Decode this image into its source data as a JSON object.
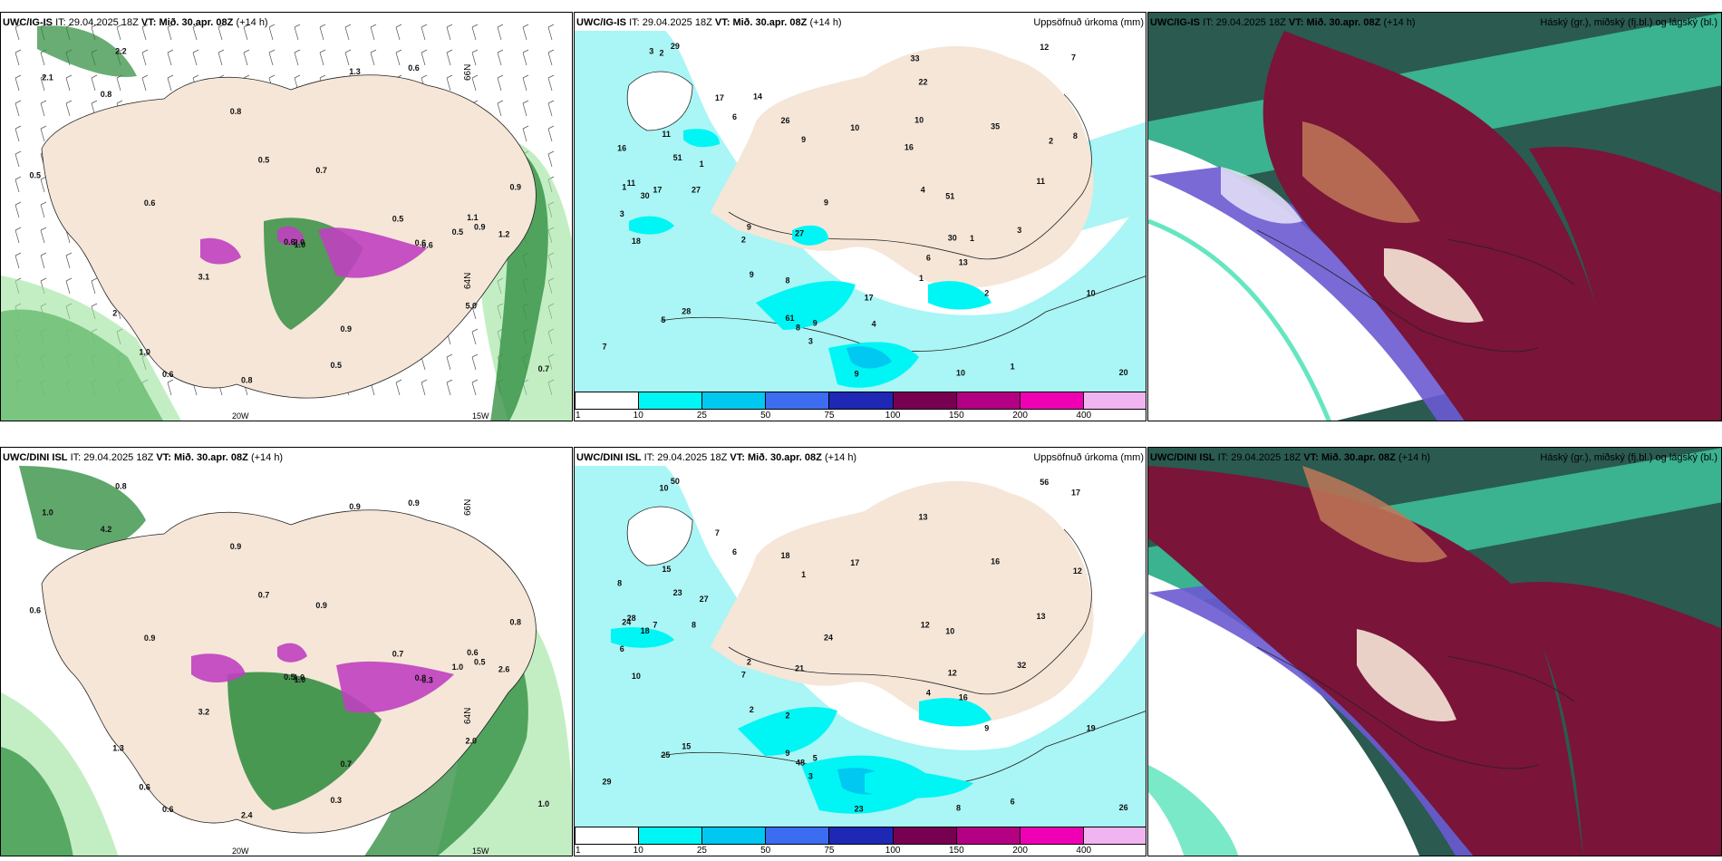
{
  "rows": [
    {
      "model": "UWC/IG-IS",
      "it_label": "IT:",
      "it_value": "29.04.2025 18Z",
      "vt_label": "VT:",
      "vt_value": "Mið. 30.apr. 08Z",
      "lead": "(+14 h)",
      "precip_title": "Uppsöfnuð úrkoma (mm)",
      "cloud_title": "Háský (gr.), miðský (fj.bl.) og lágský (bl.)",
      "lat_label": "66N",
      "lat_label_2": "64N",
      "lon_labels": [
        "20W",
        "15W"
      ],
      "snow_values": [
        "2.2",
        "0.6",
        "0.7",
        "0.5",
        "0.6",
        "0.5",
        "0.6",
        "0.6",
        "1.0",
        "2.0",
        "0.5",
        "0.5",
        "0.9",
        "0.8",
        "5.0",
        "3.1",
        "0.8",
        "0.6",
        "0.7",
        "0.5",
        "0.9",
        "1.1",
        "2.1",
        "1.3",
        "0.9",
        "1.0",
        "0.6",
        "0.8",
        "1.2",
        "2"
      ],
      "precip_values": [
        "6",
        "9",
        "9",
        "7",
        "22",
        "8",
        "10",
        "17",
        "12",
        "3",
        "2",
        "2",
        "6",
        "2",
        "1",
        "1",
        "10",
        "9",
        "51",
        "7",
        "5",
        "4",
        "1",
        "27",
        "28",
        "30",
        "20",
        "11",
        "3",
        "27",
        "35",
        "11",
        "9",
        "29",
        "8",
        "13",
        "10",
        "11",
        "30",
        "26",
        "61",
        "51",
        "18",
        "16",
        "17",
        "3",
        "9",
        "8",
        "9",
        "10",
        "14",
        "17",
        "33",
        "16",
        "2",
        "1",
        "3",
        "1",
        "4"
      ]
    },
    {
      "model": "UWC/DINI ISL",
      "it_label": "IT:",
      "it_value": "29.04.2025 18Z",
      "vt_label": "VT:",
      "vt_value": "Mið. 30.apr. 08Z",
      "lead": "(+14 h)",
      "precip_title": "Uppsöfnuð úrkoma (mm)",
      "cloud_title": "Háský (gr.), miðský (fj.bl.) og lágský (bl.)",
      "lat_label": "66N",
      "lat_label_2": "64N",
      "lon_labels": [
        "20W",
        "15W"
      ],
      "snow_values": [
        "0.8",
        "0.9",
        "0.9",
        "0.7",
        "0.6",
        "1.0",
        "0.8",
        "0.5",
        "1.0",
        "1.0",
        "0.6",
        "0.3",
        "0.7",
        "0.9",
        "2.0",
        "3.2",
        "2.4",
        "0.9",
        "1.0",
        "0.7",
        "0.5",
        "0.6",
        "1.0",
        "0.9",
        "0.8",
        "0.6",
        "0.3",
        "4.2",
        "2.6",
        "1.3"
      ],
      "precip_values": [
        "6",
        "5",
        "2",
        "17",
        "13",
        "12",
        "8",
        "7",
        "56",
        "6",
        "7",
        "9",
        "4",
        "10",
        "24",
        "27",
        "17",
        "24",
        "23",
        "29",
        "25",
        "12",
        "6",
        "8",
        "15",
        "18",
        "26",
        "28",
        "32",
        "21",
        "16",
        "13",
        "23",
        "50",
        "48",
        "16",
        "19",
        "15",
        "12",
        "18",
        "9",
        "10",
        "10",
        "8",
        "7",
        "3",
        "2",
        "2",
        "1"
      ]
    }
  ],
  "colorbar": {
    "labels": [
      "1",
      "10",
      "25",
      "50",
      "75",
      "100",
      "150",
      "200",
      "400"
    ],
    "colors": [
      "#ffffff",
      "#00f5f5",
      "#00c8f0",
      "#3c6cf0",
      "#1e28b4",
      "#780050",
      "#b40082",
      "#f000b4",
      "#f0b4f0"
    ]
  },
  "colors": {
    "land": "#f5e6d8",
    "sea": "#ffffff",
    "precip_light": "#aaf5f5",
    "cloud_high": "#40c8a0",
    "cloud_mid": "#6a5ad2",
    "cloud_low": "#7a1438",
    "snow_green": "#2a8a3a",
    "snow_purple": "#c040c0"
  }
}
